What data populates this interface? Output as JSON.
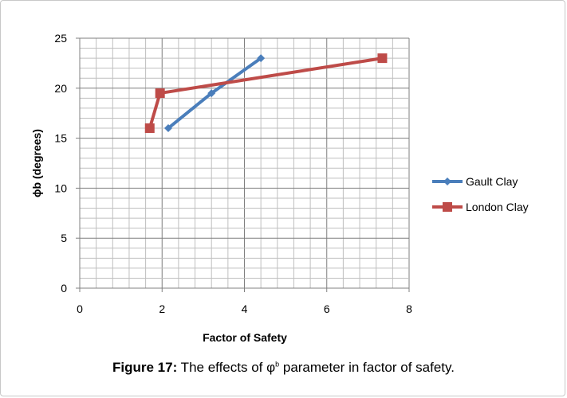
{
  "chart_data": {
    "type": "line",
    "title": "",
    "xlabel": "Factor of Safety",
    "ylabel": "ϕb (degrees)",
    "xlim": [
      0,
      8
    ],
    "ylim": [
      0,
      25
    ],
    "x_ticks": [
      "0",
      "2",
      "4",
      "6",
      "8"
    ],
    "y_ticks": [
      "0",
      "5",
      "10",
      "15",
      "20",
      "25"
    ],
    "grid": true,
    "legend_position": "right",
    "series": [
      {
        "name": "Gault Clay",
        "color": "#4a7ebb",
        "marker": "diamond",
        "x": [
          2.15,
          3.2,
          4.4
        ],
        "y": [
          16,
          19.5,
          23
        ]
      },
      {
        "name": "London Clay",
        "color": "#be4b48",
        "marker": "square",
        "x": [
          1.7,
          1.95,
          7.35
        ],
        "y": [
          16,
          19.5,
          23
        ]
      }
    ]
  },
  "caption": {
    "label": "Figure 17:",
    "text_before": " The effects of φ",
    "superscript": "b",
    "text_after": " parameter in factor of safety."
  }
}
